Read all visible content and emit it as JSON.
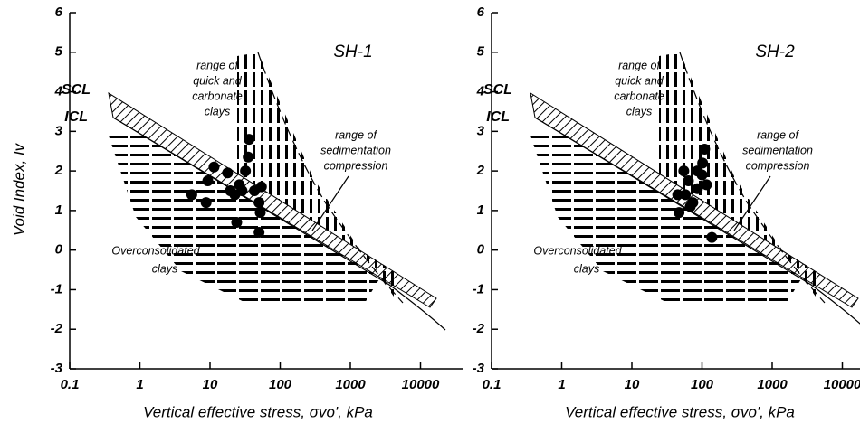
{
  "chart_data": [
    {
      "type": "scatter",
      "title": "SH-1",
      "color": "#000000",
      "log_x": true,
      "x": [
        5.5,
        8.8,
        9.3,
        11.4,
        17.8,
        19.5,
        22.6,
        26.2,
        28.6,
        32,
        24,
        36,
        35,
        43,
        50,
        52,
        50,
        54
      ],
      "y": [
        1.4,
        1.2,
        1.75,
        2.1,
        1.95,
        1.5,
        1.4,
        1.65,
        1.5,
        2.0,
        0.7,
        2.8,
        2.35,
        1.5,
        1.2,
        0.95,
        0.45,
        1.6
      ],
      "xlim": [
        0.1,
        40000
      ],
      "xticks": [
        0.1,
        1,
        10,
        100,
        1000,
        10000
      ],
      "ylim": [
        -3,
        6
      ],
      "yticks": [
        -3,
        -2,
        -1,
        0,
        1,
        2,
        3,
        4,
        5,
        6
      ],
      "x_label": "Vertical effective stress, σvo', kPa",
      "y_label": "Void Index, Iv",
      "annotations": [
        [
          "SCL"
        ],
        [
          "ICL"
        ],
        [
          "range of",
          "quick and",
          "carbonate",
          "clays"
        ],
        [
          "range of",
          "sedimentation",
          "compression"
        ],
        [
          "Overconsolidated",
          "clays"
        ]
      ]
    },
    {
      "type": "scatter",
      "title": "SH-2",
      "color": "#000000",
      "log_x": true,
      "x": [
        55,
        47,
        58,
        64,
        74,
        86,
        100,
        109,
        102,
        116,
        86,
        68,
        138,
        45
      ],
      "y": [
        2.0,
        0.95,
        1.4,
        1.75,
        1.2,
        1.55,
        1.9,
        2.55,
        2.2,
        1.65,
        2.0,
        1.1,
        0.32,
        1.4
      ],
      "xlim": [
        0.1,
        40000
      ],
      "xticks": [
        0.1,
        1,
        10,
        100,
        1000,
        10000
      ],
      "ylim": [
        -3,
        6
      ],
      "yticks": [
        -3,
        -2,
        -1,
        0,
        1,
        2,
        3,
        4,
        5,
        6
      ],
      "x_label": "Vertical effective stress, σvo', kPa",
      "annotations": [
        [
          "SCL"
        ],
        [
          "ICL"
        ],
        [
          "range of",
          "quick and",
          "carbonate",
          "clays"
        ],
        [
          "range of",
          "sedimentation",
          "compression"
        ],
        [
          "Overconsolidated",
          "clays"
        ]
      ]
    }
  ]
}
